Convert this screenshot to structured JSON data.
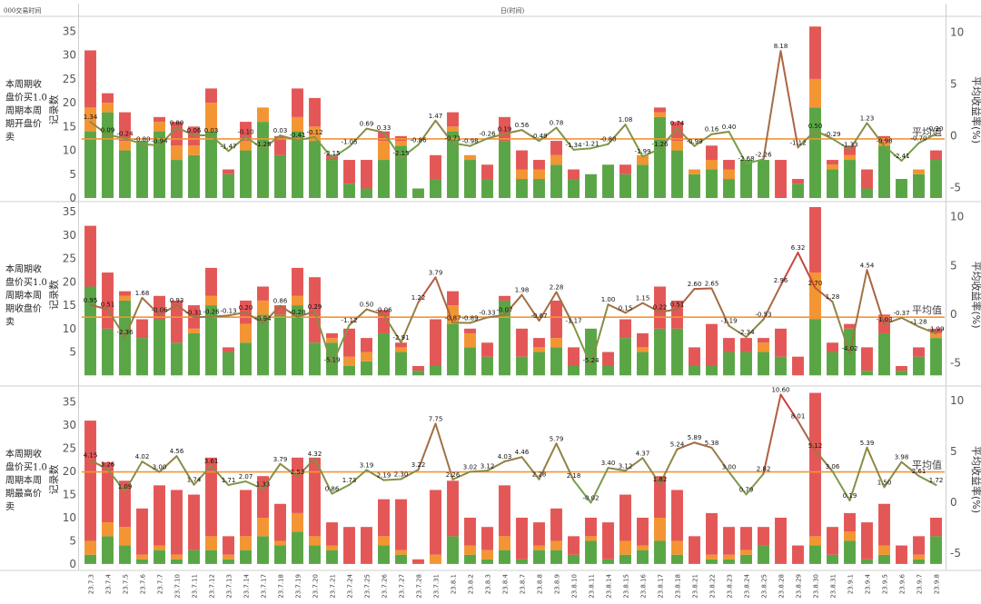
{
  "header": {
    "left": "000交易时间",
    "center": "日(时间)"
  },
  "colors": {
    "green": "#5aa646",
    "orange": "#f39532",
    "red": "#e45757",
    "avg_line": "#f39532",
    "line_low": "#6ab04c",
    "line_high": "#d9303b"
  },
  "chart_data": [
    {
      "type": "bar",
      "row_label_lines": [
        "本周期收",
        "盘价买1.0",
        "周期本周",
        "期开盘价",
        "卖"
      ],
      "ylabel": "记录数",
      "y2label": "平均收益率(%)",
      "avg_label": "平均值",
      "ylim": [
        0,
        37
      ],
      "y_ticks": [
        0,
        5,
        10,
        15,
        20,
        25,
        30,
        35
      ],
      "y2lim": [
        -6,
        11
      ],
      "y2_ticks": [
        -5,
        0,
        5,
        10
      ],
      "avg_value": -0.3,
      "categories": [
        "23.7.3",
        "23.7.4",
        "23.7.5",
        "23.7.6",
        "23.7.7",
        "23.7.10",
        "23.7.11",
        "23.7.12",
        "23.7.13",
        "23.7.14",
        "23.7.17",
        "23.7.18",
        "23.7.19",
        "23.7.20",
        "23.7.21",
        "23.7.24",
        "23.7.25",
        "23.7.26",
        "23.7.27",
        "23.7.28",
        "23.7.31",
        "23.8.1",
        "23.8.2",
        "23.8.3",
        "23.8.4",
        "23.8.7",
        "23.8.8",
        "23.8.9",
        "23.8.10",
        "23.8.11",
        "23.8.14",
        "23.8.15",
        "23.8.16",
        "23.8.17",
        "23.8.18",
        "23.8.21",
        "23.8.22",
        "23.8.23",
        "23.8.24",
        "23.8.25",
        "23.8.28",
        "23.8.29",
        "23.8.30",
        "23.8.31",
        "23.9.1",
        "23.9.4",
        "23.9.5",
        "23.9.6",
        "23.9.7",
        "23.9.8"
      ],
      "series": [
        {
          "name": "",
          "color": "green",
          "values": [
            14,
            18,
            10,
            12,
            14,
            8,
            9,
            14,
            5,
            10,
            16,
            9,
            14,
            12,
            8,
            3,
            2,
            8,
            11,
            2,
            4,
            14,
            8,
            4,
            12,
            4,
            4,
            7,
            4,
            5,
            7,
            5,
            7,
            17,
            10,
            5,
            6,
            4,
            8,
            8,
            0,
            3,
            19,
            6,
            8,
            2,
            11,
            4,
            5,
            8
          ]
        },
        {
          "name": "",
          "color": "orange",
          "values": [
            5,
            2,
            2,
            0,
            2,
            3,
            2,
            6,
            0,
            2,
            3,
            0,
            3,
            3,
            0,
            0,
            0,
            4,
            1,
            0,
            0,
            1,
            1,
            0,
            0,
            2,
            2,
            2,
            0,
            0,
            0,
            0,
            2,
            1,
            2,
            1,
            2,
            2,
            0,
            0,
            0,
            0,
            6,
            1,
            1,
            0,
            1,
            0,
            1,
            0
          ]
        },
        {
          "name": "",
          "color": "red",
          "values": [
            12,
            2,
            6,
            0,
            1,
            5,
            4,
            3,
            1,
            4,
            0,
            4,
            6,
            6,
            1,
            5,
            6,
            2,
            1,
            0,
            5,
            3,
            0,
            3,
            5,
            4,
            2,
            3,
            2,
            0,
            0,
            2,
            0,
            1,
            4,
            0,
            3,
            2,
            0,
            0,
            8,
            1,
            11,
            1,
            2,
            4,
            1,
            0,
            0,
            2
          ]
        }
      ],
      "line_values": [
        1.34,
        0.09,
        -0.24,
        -0.8,
        -0.94,
        0.8,
        0.06,
        0.03,
        -1.47,
        -0.1,
        -1.26,
        0.03,
        -0.41,
        -0.12,
        -2.15,
        -1.05,
        0.69,
        0.33,
        -2.15,
        -0.86,
        1.47,
        -0.71,
        -0.98,
        -0.26,
        0.19,
        0.56,
        -0.49,
        0.78,
        -1.34,
        -1.21,
        -0.8,
        1.08,
        -1.99,
        -1.26,
        0.74,
        -0.99,
        0.16,
        0.4,
        -2.68,
        -2.26,
        8.18,
        -1.12,
        0.5,
        -0.29,
        -1.33,
        1.23,
        -0.98,
        -2.41,
        -0.7,
        0.2
      ],
      "line_range": [
        -3,
        8.2
      ]
    },
    {
      "type": "bar",
      "row_label_lines": [
        "本周期收",
        "盘价买1.0",
        "周期本周",
        "期收盘价",
        "卖"
      ],
      "ylabel": "记录数",
      "y2label": "平均收益率(%)",
      "avg_label": "平均值",
      "ylim": [
        -1.5,
        36
      ],
      "y_ticks": [
        5,
        10,
        15,
        20,
        25,
        30,
        35
      ],
      "y2lim": [
        -7,
        11
      ],
      "y2_ticks": [
        -5,
        0,
        5,
        10
      ],
      "avg_value": -0.3,
      "categories": [
        "23.7.3",
        "23.7.4",
        "23.7.5",
        "23.7.6",
        "23.7.7",
        "23.7.10",
        "23.7.11",
        "23.7.12",
        "23.7.13",
        "23.7.14",
        "23.7.17",
        "23.7.18",
        "23.7.19",
        "23.7.20",
        "23.7.21",
        "23.7.24",
        "23.7.25",
        "23.7.26",
        "23.7.27",
        "23.7.28",
        "23.7.31",
        "23.8.1",
        "23.8.2",
        "23.8.3",
        "23.8.4",
        "23.8.7",
        "23.8.8",
        "23.8.9",
        "23.8.10",
        "23.8.11",
        "23.8.14",
        "23.8.15",
        "23.8.16",
        "23.8.17",
        "23.8.18",
        "23.8.21",
        "23.8.22",
        "23.8.23",
        "23.8.24",
        "23.8.25",
        "23.8.28",
        "23.8.29",
        "23.8.30",
        "23.8.31",
        "23.9.1",
        "23.9.4",
        "23.9.5",
        "23.9.6",
        "23.9.7",
        "23.9.8"
      ],
      "series": [
        {
          "name": "",
          "color": "green",
          "values": [
            19,
            10,
            16,
            8,
            12,
            7,
            9,
            15,
            5,
            7,
            13,
            13,
            15,
            7,
            7,
            2,
            3,
            9,
            5,
            1,
            2,
            11,
            6,
            4,
            16,
            4,
            5,
            6,
            2,
            10,
            2,
            8,
            5,
            10,
            10,
            2,
            2,
            5,
            5,
            5,
            4,
            0,
            12,
            5,
            10,
            1,
            9,
            1,
            4,
            8
          ]
        },
        {
          "name": "",
          "color": "orange",
          "values": [
            0,
            0,
            1,
            0,
            0,
            0,
            1,
            2,
            0,
            4,
            3,
            0,
            2,
            0,
            1,
            2,
            2,
            0,
            1,
            0,
            0,
            4,
            3,
            0,
            0,
            0,
            1,
            2,
            0,
            0,
            0,
            0,
            1,
            0,
            0,
            0,
            0,
            0,
            0,
            2,
            0,
            0,
            10,
            0,
            0,
            0,
            0,
            0,
            0,
            1
          ]
        },
        {
          "name": "",
          "color": "red",
          "values": [
            13,
            12,
            1,
            4,
            5,
            9,
            5,
            6,
            1,
            5,
            3,
            2,
            6,
            14,
            1,
            6,
            3,
            5,
            1,
            1,
            10,
            3,
            1,
            3,
            1,
            6,
            2,
            8,
            4,
            0,
            3,
            4,
            3,
            9,
            6,
            4,
            9,
            3,
            3,
            1,
            6,
            4,
            14,
            2,
            1,
            5,
            4,
            1,
            2,
            1
          ]
        }
      ],
      "line_values": [
        0.95,
        0.51,
        -2.36,
        1.68,
        -0.06,
        0.93,
        -0.31,
        -0.26,
        -0.13,
        0.2,
        -0.94,
        0.86,
        -0.28,
        0.29,
        -5.19,
        -1.12,
        0.5,
        -0.06,
        -2.91,
        1.22,
        3.79,
        -0.87,
        -0.89,
        -0.33,
        -0.07,
        1.98,
        -0.67,
        2.28,
        -1.17,
        -5.24,
        1.0,
        0.15,
        1.15,
        0.22,
        0.51,
        2.6,
        2.65,
        -1.19,
        -2.34,
        -0.53,
        2.96,
        6.32,
        2.7,
        1.28,
        -4.02,
        4.54,
        -1.03,
        -0.37,
        -1.28,
        -1.99
      ],
      "line_range": [
        -5.3,
        6.4
      ]
    },
    {
      "type": "bar",
      "row_label_lines": [
        "本周期收",
        "盘价买1.0",
        "周期本周",
        "期最高价",
        "卖"
      ],
      "ylabel": "记录数",
      "y2label": "平均收益率(%)",
      "avg_label": "平均值",
      "ylim": [
        -1,
        37.5
      ],
      "y_ticks": [
        0,
        5,
        10,
        15,
        20,
        25,
        30,
        35
      ],
      "y2lim": [
        -6.5,
        11
      ],
      "y2_ticks": [
        -5,
        0,
        5,
        10
      ],
      "avg_value": 3.0,
      "categories": [
        "23.7.3",
        "23.7.4",
        "23.7.5",
        "23.7.6",
        "23.7.7",
        "23.7.10",
        "23.7.11",
        "23.7.12",
        "23.7.13",
        "23.7.14",
        "23.7.17",
        "23.7.18",
        "23.7.19",
        "23.7.20",
        "23.7.21",
        "23.7.24",
        "23.7.25",
        "23.7.26",
        "23.7.27",
        "23.7.28",
        "23.7.31",
        "23.8.1",
        "23.8.2",
        "23.8.3",
        "23.8.4",
        "23.8.7",
        "23.8.8",
        "23.8.9",
        "23.8.10",
        "23.8.11",
        "23.8.14",
        "23.8.15",
        "23.8.16",
        "23.8.17",
        "23.8.18",
        "23.8.21",
        "23.8.22",
        "23.8.23",
        "23.8.24",
        "23.8.25",
        "23.8.28",
        "23.8.29",
        "23.8.30",
        "23.8.31",
        "23.9.1",
        "23.9.4",
        "23.9.5",
        "23.9.6",
        "23.9.7",
        "23.9.8"
      ],
      "series": [
        {
          "name": "",
          "color": "green",
          "values": [
            2,
            6,
            4,
            1,
            3,
            1,
            3,
            3,
            1,
            3,
            6,
            4,
            7,
            4,
            3,
            0,
            0,
            4,
            2,
            0,
            0,
            6,
            2,
            1,
            3,
            1,
            3,
            3,
            2,
            5,
            1,
            2,
            3,
            5,
            2,
            0,
            1,
            1,
            2,
            4,
            0,
            0,
            4,
            2,
            5,
            1,
            2,
            0,
            1,
            6
          ]
        },
        {
          "name": "",
          "color": "orange",
          "values": [
            3,
            3,
            4,
            1,
            1,
            1,
            0,
            3,
            1,
            3,
            4,
            1,
            4,
            2,
            1,
            0,
            0,
            2,
            1,
            0,
            2,
            0,
            2,
            2,
            3,
            0,
            1,
            2,
            0,
            1,
            0,
            3,
            1,
            5,
            3,
            0,
            1,
            1,
            1,
            0,
            0,
            0,
            2,
            0,
            2,
            0,
            2,
            0,
            1,
            0
          ]
        },
        {
          "name": "",
          "color": "red",
          "values": [
            26,
            13,
            10,
            10,
            13,
            14,
            12,
            17,
            4,
            10,
            9,
            8,
            12,
            17,
            5,
            8,
            8,
            8,
            11,
            1,
            14,
            12,
            6,
            5,
            11,
            9,
            5,
            7,
            4,
            4,
            8,
            10,
            6,
            9,
            11,
            6,
            9,
            6,
            5,
            4,
            10,
            4,
            31,
            6,
            4,
            8,
            9,
            4,
            4,
            4
          ]
        }
      ],
      "line_values": [
        4.15,
        3.26,
        1.09,
        4.02,
        3.0,
        4.56,
        1.74,
        3.61,
        1.71,
        2.07,
        1.33,
        3.79,
        2.53,
        4.32,
        0.86,
        1.73,
        3.19,
        2.19,
        2.3,
        3.22,
        7.75,
        2.26,
        3.02,
        3.12,
        4.03,
        4.46,
        2.28,
        5.79,
        2.18,
        -0.02,
        3.4,
        3.12,
        4.37,
        1.82,
        5.24,
        5.89,
        5.38,
        3.0,
        0.79,
        2.82,
        10.6,
        8.01,
        5.12,
        3.06,
        0.19,
        5.39,
        1.5,
        3.98,
        2.61,
        1.72
      ],
      "line_range": [
        -0.1,
        10.6
      ]
    }
  ]
}
